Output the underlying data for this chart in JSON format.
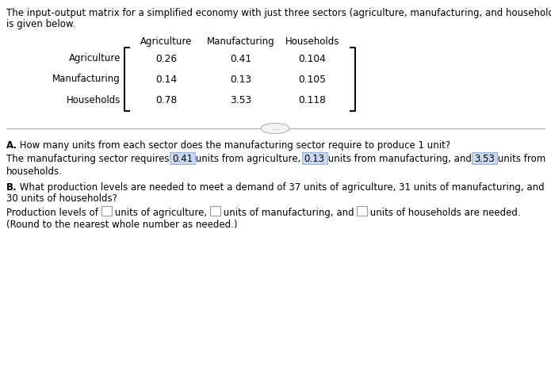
{
  "title_line1": "The input-output matrix for a simplified economy with just three sectors (agriculture, manufacturing, and households)",
  "title_line2": "is given below.",
  "col_headers": [
    "Agriculture",
    "Manufacturing",
    "Households"
  ],
  "row_headers": [
    "Agriculture",
    "Manufacturing",
    "Households"
  ],
  "matrix": [
    [
      "0.26",
      "0.41",
      "0.104"
    ],
    [
      "0.14",
      "0.13",
      "0.105"
    ],
    [
      "0.78",
      "3.53",
      "0.118"
    ]
  ],
  "separator_text": "...",
  "section_A_bold": "A.",
  "section_A_rest": " How many units from each sector does the manufacturing sector require to produce 1 unit?",
  "ans_A_pre": "The manufacturing sector requires ",
  "ans_A_v1": "0.41",
  "ans_A_m1": " units from agriculture, ",
  "ans_A_v2": "0.13",
  "ans_A_m2": " units from manufacturing, and ",
  "ans_A_v3": "3.53",
  "ans_A_post": " units from",
  "ans_A_line2": "households.",
  "section_B_bold": "B.",
  "section_B_rest": " What production levels are needed to meet a demand of 37 units of agriculture, 31 units of manufacturing, and",
  "section_B_line2": "30 units of households?",
  "ans_B_pre": "Production levels of ",
  "ans_B_m1": " units of agriculture, ",
  "ans_B_m2": " units of manufacturing, and ",
  "ans_B_post": " units of households are needed.",
  "ans_B_line2": "(Round to the nearest whole number as needed.)",
  "highlight_color": "#c8d8f0",
  "highlight_border": "#9aafe0",
  "empty_box_border": "#999999",
  "text_color": "#000000",
  "bg_color": "#ffffff",
  "sep_line_color": "#aaaaaa",
  "sep_ellipse_face": "#f5f5f5",
  "sep_ellipse_edge": "#bbbbbb"
}
